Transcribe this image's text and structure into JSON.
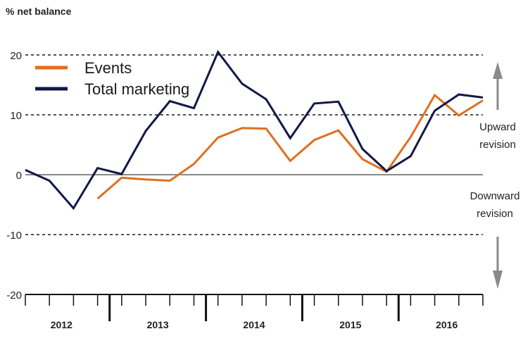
{
  "chart_data": {
    "type": "line",
    "title": "% net balance",
    "xlabel": "",
    "ylabel": "",
    "ylim": [
      -20,
      20
    ],
    "yticks": [
      -20,
      -10,
      0,
      10,
      20
    ],
    "ytick_labels": [
      "-20",
      "-10",
      "0",
      "10",
      "20"
    ],
    "years": [
      "2012",
      "2013",
      "2014",
      "2015",
      "2016"
    ],
    "quarters_per_year": 4,
    "grid": "dashed horizontal at 20, 10, -10",
    "legend_position": "top-left",
    "series": [
      {
        "name": "Events",
        "color": "#e06f1f",
        "quarter_index_start": 3,
        "values": [
          -4,
          -0.5,
          -0.8,
          -1,
          1.8,
          6.2,
          7.8,
          7.7,
          2.3,
          5.8,
          7.4,
          2.6,
          0.5,
          6.3,
          13.3,
          9.9,
          12.4
        ]
      },
      {
        "name": "Total marketing",
        "color": "#121845",
        "quarter_index_start": 0,
        "values": [
          0.8,
          -1,
          -5.6,
          1.1,
          0.1,
          7.3,
          12.3,
          11.1,
          20.5,
          15.2,
          12.6,
          6.1,
          11.9,
          12.2,
          4.3,
          0.6,
          3.1,
          10.7,
          13.4,
          12.9
        ]
      }
    ],
    "annotations": {
      "upward": "Upward\nrevision",
      "downward": "Downward\nrevision"
    },
    "colors": {
      "axis_zero": "#888888",
      "grid": "#1a1a1a",
      "arrow": "#8a8a8a"
    }
  }
}
